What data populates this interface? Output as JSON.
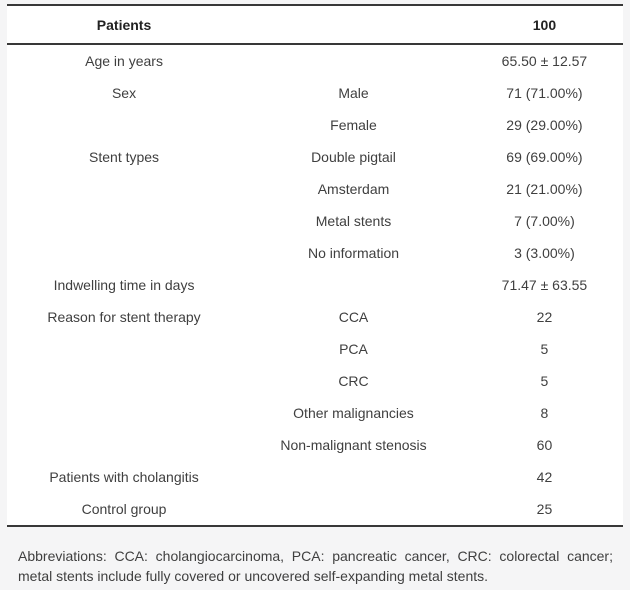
{
  "colors": {
    "page_bg": "#f5f5f6",
    "card_bg": "#ffffff",
    "rule": "#383838",
    "body_text": "#3f3f3f",
    "header_text": "#222222"
  },
  "table": {
    "header": {
      "label": "Patients",
      "sub": "",
      "value": "100"
    },
    "rows": [
      {
        "label": "Age in years",
        "sub": "",
        "value": "65.50 ± 12.57"
      },
      {
        "label": "Sex",
        "sub": "Male",
        "value": "71 (71.00%)"
      },
      {
        "label": "",
        "sub": "Female",
        "value": "29 (29.00%)"
      },
      {
        "label": "Stent types",
        "sub": "Double pigtail",
        "value": "69 (69.00%)"
      },
      {
        "label": "",
        "sub": "Amsterdam",
        "value": "21 (21.00%)"
      },
      {
        "label": "",
        "sub": "Metal stents",
        "value": "7 (7.00%)"
      },
      {
        "label": "",
        "sub": "No information",
        "value": "3 (3.00%)"
      },
      {
        "label": "Indwelling time in days",
        "sub": "",
        "value": "71.47 ± 63.55"
      },
      {
        "label": "Reason for stent therapy",
        "sub": "CCA",
        "value": "22"
      },
      {
        "label": "",
        "sub": "PCA",
        "value": "5"
      },
      {
        "label": "",
        "sub": "CRC",
        "value": "5"
      },
      {
        "label": "",
        "sub": "Other malignancies",
        "value": "8"
      },
      {
        "label": "",
        "sub": "Non-malignant stenosis",
        "value": "60"
      },
      {
        "label": "Patients with cholangitis",
        "sub": "",
        "value": "42"
      },
      {
        "label": "Control group",
        "sub": "",
        "value": "25"
      }
    ]
  },
  "footnote": "Abbreviations: CCA: cholangiocarcinoma, PCA: pancreatic cancer, CRC: colorectal cancer; metal stents include fully covered or uncovered self-expanding metal stents."
}
